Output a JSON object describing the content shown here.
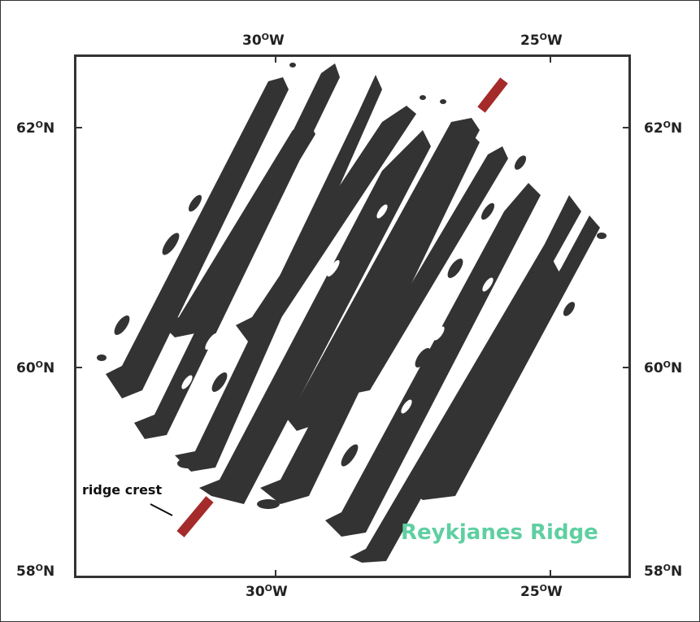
{
  "map": {
    "title": "Reykjanes Ridge",
    "annotation": "ridge crest",
    "colors": {
      "anomaly": "#333333",
      "ridge_axis": "#a52a2a",
      "title": "#5fcfa1"
    },
    "longitude_labels": [
      "30",
      "W",
      "25",
      "W"
    ],
    "latitude_labels": {
      "lat62": {
        "value": "62",
        "hemi": "N"
      },
      "lat60": {
        "value": "60",
        "hemi": "N"
      },
      "lat58": {
        "value": "58",
        "hemi": "N"
      }
    },
    "top_labels": {
      "lon30": {
        "value": "30",
        "hemi": "W"
      },
      "lon25": {
        "value": "25",
        "hemi": "W"
      }
    },
    "degree_mark": "O"
  }
}
